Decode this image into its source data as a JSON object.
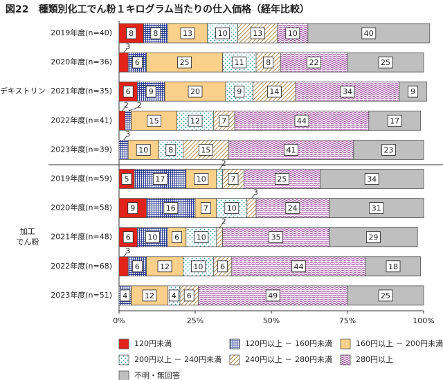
{
  "chart_data": {
    "type": "stacked-bar-horizontal",
    "title": "図22　種類別化工でん粉１キログラム当たりの仕入価格（経年比較）",
    "groups": [
      {
        "label": [
          "デキストリン"
        ],
        "rows": [
          0,
          4
        ]
      },
      {
        "label": [
          "加工",
          "でん粉"
        ],
        "rows": [
          5,
          9
        ]
      }
    ],
    "categories": [
      "2019年度(n=40)",
      "2020年度(n=36)",
      "2021年度(n=35)",
      "2022年度(n=41)",
      "2023年度(n=39)",
      "2019年度(n=59)",
      "2020年度(n=58)",
      "2021年度(n=48)",
      "2022年度(n=68)",
      "2023年度(n=51)"
    ],
    "series": [
      {
        "name": "120円未満",
        "color": "#e2231a",
        "pattern": "solid",
        "values": [
          8,
          3,
          6,
          2,
          0,
          5,
          9,
          6,
          3,
          0
        ]
      },
      {
        "name": "120円以上 － 160円未満",
        "color": "#2e3f94",
        "pattern": "grid",
        "values": [
          8,
          6,
          9,
          2,
          3,
          17,
          16,
          10,
          6,
          4
        ]
      },
      {
        "name": "160円以上 － 200円未満",
        "color": "#fbd08a",
        "pattern": "solid",
        "values": [
          13,
          25,
          20,
          15,
          10,
          10,
          7,
          6,
          12,
          12
        ]
      },
      {
        "name": "200円以上 － 240円未満",
        "color": "#2a9d9d",
        "pattern": "dots",
        "values": [
          10,
          11,
          9,
          12,
          8,
          2,
          10,
          10,
          10,
          4
        ]
      },
      {
        "name": "240円以上 － 280円未満",
        "color": "#b88a50",
        "pattern": "diagonal",
        "values": [
          13,
          8,
          14,
          7,
          15,
          7,
          3,
          2,
          6,
          6
        ]
      },
      {
        "name": "280円以上",
        "color": "#9b3c9b",
        "pattern": "zigzag",
        "values": [
          10,
          22,
          34,
          44,
          41,
          25,
          24,
          35,
          44,
          49
        ]
      },
      {
        "name": "不明・無回答",
        "color": "#bfbfbf",
        "pattern": "solid",
        "values": [
          40,
          25,
          9,
          17,
          23,
          34,
          31,
          29,
          18,
          25
        ]
      }
    ],
    "xlim": [
      0,
      100
    ],
    "xticks": [
      {
        "value": 0,
        "label": "0%"
      },
      {
        "value": 25,
        "label": "25%"
      },
      {
        "value": 50,
        "label": "50%"
      },
      {
        "value": 75,
        "label": "75%"
      },
      {
        "value": 100,
        "label": "100%"
      }
    ]
  }
}
